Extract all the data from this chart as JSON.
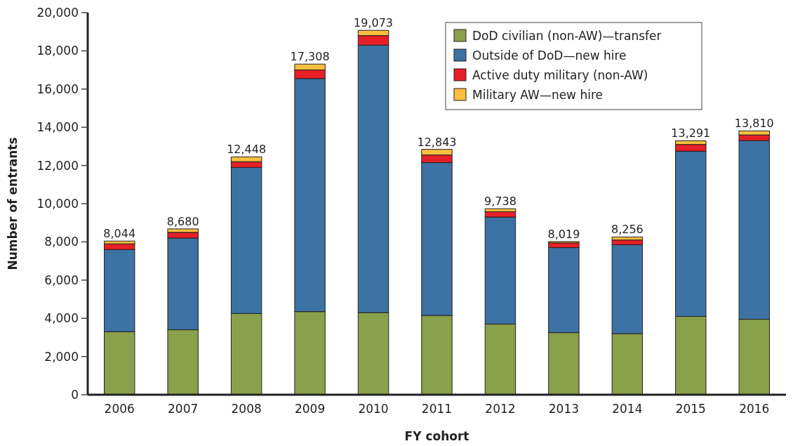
{
  "chart_data": {
    "type": "bar",
    "stacked": true,
    "xlabel": "FY cohort",
    "ylabel": "Number of entrants",
    "categories": [
      "2006",
      "2007",
      "2008",
      "2009",
      "2010",
      "2011",
      "2012",
      "2013",
      "2014",
      "2015",
      "2016"
    ],
    "series": [
      {
        "name": "DoD civilian (non-AW)—transfer",
        "color": "#8aa04b",
        "values": [
          3300,
          3400,
          4250,
          4350,
          4300,
          4150,
          3700,
          3250,
          3200,
          4100,
          3950
        ]
      },
      {
        "name": "Outside of DoD—new hire",
        "color": "#3d72a4",
        "values": [
          4300,
          4800,
          7650,
          12200,
          14000,
          8000,
          5600,
          4450,
          4650,
          8650,
          9350
        ]
      },
      {
        "name": "Active duty military (non-AW)",
        "color": "#e81f27",
        "values": [
          300,
          300,
          300,
          450,
          500,
          400,
          280,
          250,
          250,
          350,
          300
        ]
      },
      {
        "name": "Military AW—new hire",
        "color": "#fdbf3e",
        "values": [
          144,
          180,
          248,
          308,
          273,
          293,
          158,
          69,
          156,
          191,
          210
        ]
      }
    ],
    "totals": [
      "8,044",
      "8,680",
      "12,448",
      "17,308",
      "19,073",
      "12,843",
      "9,738",
      "8,019",
      "8,256",
      "13,291",
      "13,810"
    ],
    "ylim": [
      0,
      20000
    ],
    "yticks": [
      0,
      {
        "value": 2000,
        "label": "2,000"
      },
      {
        "value": 4000,
        "label": "4,000"
      },
      {
        "value": 6000,
        "label": "6,000"
      },
      {
        "value": 8000,
        "label": "8,000"
      },
      {
        "value": 10000,
        "label": "10,000"
      },
      {
        "value": 12000,
        "label": "12,000"
      },
      {
        "value": 14000,
        "label": "14,000"
      },
      {
        "value": 16000,
        "label": "16,000"
      },
      {
        "value": 18000,
        "label": "18,000"
      },
      {
        "value": 20000,
        "label": "20,000"
      }
    ],
    "legend": "top right"
  }
}
